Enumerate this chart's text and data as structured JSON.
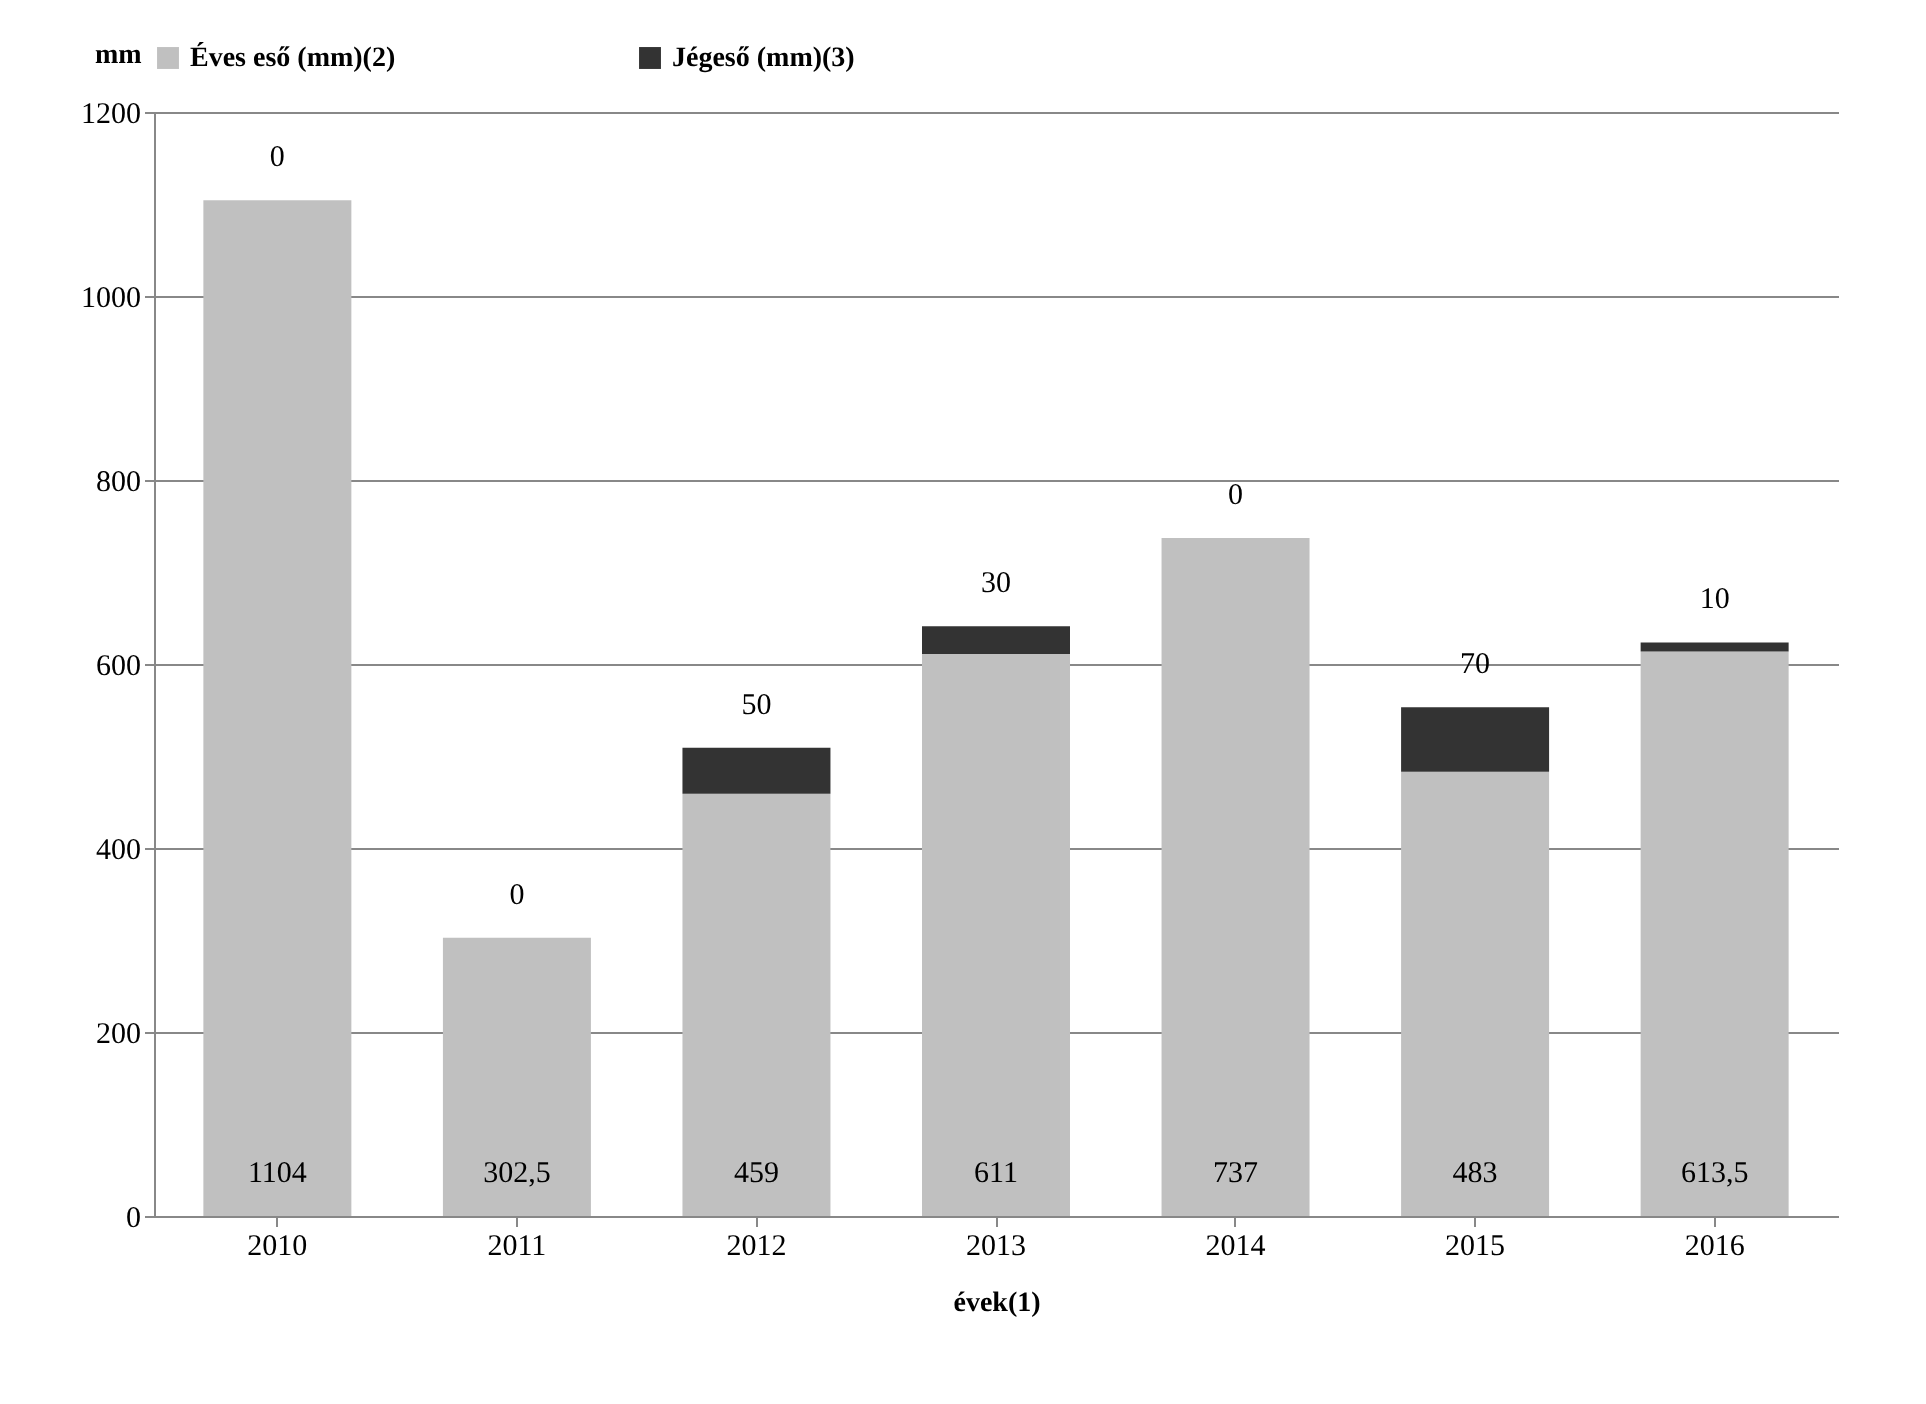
{
  "chart_data": {
    "type": "bar",
    "stacked": true,
    "xlabel": "évek(1)",
    "ylabel": "mm",
    "categories": [
      "2010",
      "2011",
      "2012",
      "2013",
      "2014",
      "2015",
      "2016"
    ],
    "series": [
      {
        "name": "Éves eső (mm)(2)",
        "color": "#c0c0c0",
        "values": [
          1104,
          302.5,
          459,
          611,
          737,
          483,
          613.5
        ],
        "value_labels": [
          "1104",
          "302,5",
          "459",
          "611",
          "737",
          "483",
          "613,5"
        ]
      },
      {
        "name": "Jégeső (mm)(3)",
        "color": "#333333",
        "values": [
          0,
          0,
          50,
          30,
          0,
          70,
          10
        ],
        "value_labels": [
          "0",
          "0",
          "50",
          "30",
          "0",
          "70",
          "10"
        ]
      }
    ],
    "ylim": [
      0,
      1200
    ],
    "yticks": [
      0,
      200,
      400,
      600,
      800,
      1000,
      1200
    ],
    "grid": "y",
    "legend": "top"
  }
}
